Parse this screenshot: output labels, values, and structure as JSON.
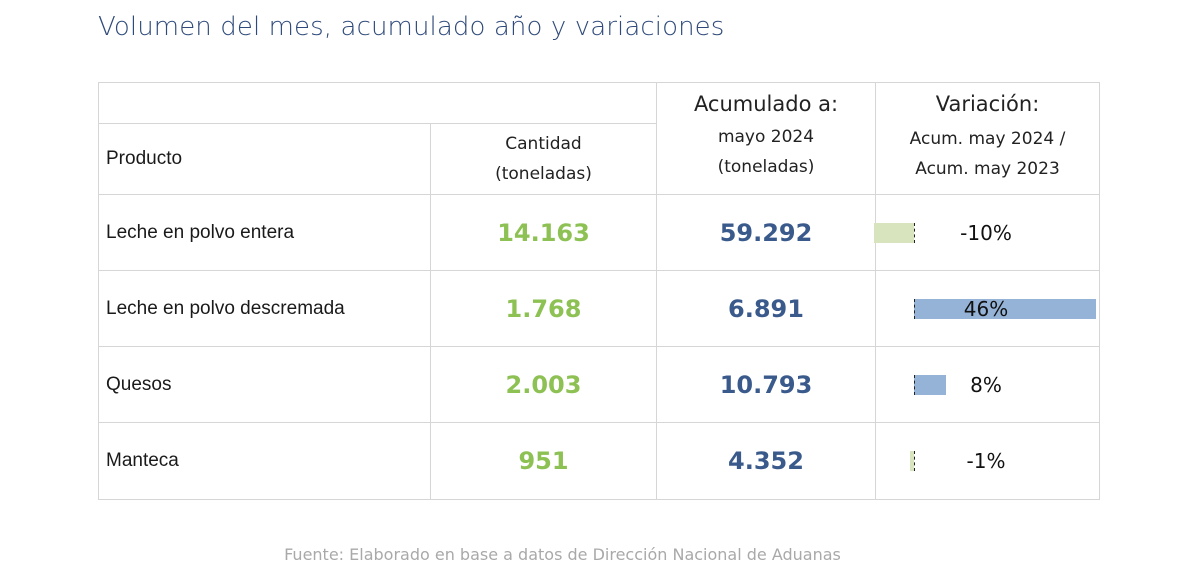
{
  "title": "Volumen del mes, acumulado año y variaciones",
  "table": {
    "header": {
      "producto": "Producto",
      "cantidad_l1": "Cantidad",
      "cantidad_l2": "(toneladas)",
      "acumulado_top": "Acumulado a:",
      "acumulado_l1": "mayo 2024",
      "acumulado_l2": "(toneladas)",
      "variacion_top": "Variación:",
      "variacion_l1": "Acum. may 2024 /",
      "variacion_l2": "Acum. may 2023"
    },
    "rows": [
      {
        "producto": "Leche en polvo entera",
        "cantidad": "14.163",
        "acumulado": "59.292",
        "variacion_label": "-10%",
        "variacion": -10
      },
      {
        "producto": "Leche en polvo descremada",
        "cantidad": "1.768",
        "acumulado": "6.891",
        "variacion_label": "46%",
        "variacion": 46
      },
      {
        "producto": "Quesos",
        "cantidad": "2.003",
        "acumulado": "10.793",
        "variacion_label": "8%",
        "variacion": 8
      },
      {
        "producto": "Manteca",
        "cantidad": "951",
        "acumulado": "4.352",
        "variacion_label": "-1%",
        "variacion": -1
      }
    ]
  },
  "colors": {
    "cantidad": "#8dc153",
    "acumulado": "#3a5a8c",
    "bar_negative": "#d7e4bd",
    "bar_positive": "#95b3d7"
  },
  "source": "Fuente: Elaborado en base a datos de Dirección Nacional de Aduanas"
}
